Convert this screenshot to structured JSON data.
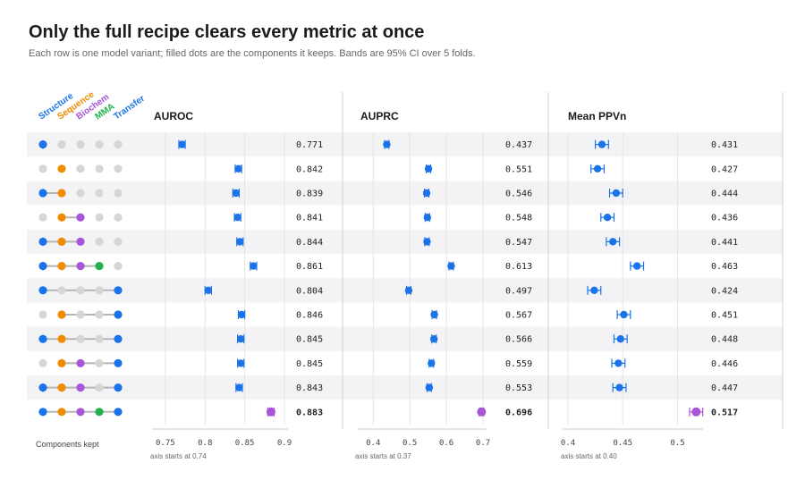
{
  "title": "Only the full recipe clears every metric at once",
  "subtitle": "Each row is one model variant; filled dots are the components it keeps. Bands are 95% CI over 5 folds.",
  "colors": {
    "point": "#1a73e8",
    "highlight": "#a855d8",
    "inactive_dot": "#d6d6d6",
    "row_band": "#f3f3f5",
    "grid": "#e4e4e4"
  },
  "footer_label": "Components kept",
  "chart_data": {
    "type": "scatter",
    "components": [
      {
        "name": "Structure",
        "color": "#1a73e8"
      },
      {
        "name": "Sequence",
        "color": "#f08c00"
      },
      {
        "name": "Biochem",
        "color": "#a855d8"
      },
      {
        "name": "MMA",
        "color": "#22b14c"
      },
      {
        "name": "Transfer",
        "color": "#1a73e8"
      }
    ],
    "rows": [
      {
        "keeps": [
          1,
          0,
          0,
          0,
          0
        ],
        "auroc": 0.771,
        "auprc": 0.437,
        "ppvn": 0.431
      },
      {
        "keeps": [
          0,
          1,
          0,
          0,
          0
        ],
        "auroc": 0.842,
        "auprc": 0.551,
        "ppvn": 0.427
      },
      {
        "keeps": [
          1,
          1,
          0,
          0,
          0
        ],
        "auroc": 0.839,
        "auprc": 0.546,
        "ppvn": 0.444
      },
      {
        "keeps": [
          0,
          1,
          1,
          0,
          0
        ],
        "auroc": 0.841,
        "auprc": 0.548,
        "ppvn": 0.436
      },
      {
        "keeps": [
          1,
          1,
          1,
          0,
          0
        ],
        "auroc": 0.844,
        "auprc": 0.547,
        "ppvn": 0.441
      },
      {
        "keeps": [
          1,
          1,
          1,
          1,
          0
        ],
        "auroc": 0.861,
        "auprc": 0.613,
        "ppvn": 0.463
      },
      {
        "keeps": [
          1,
          0,
          0,
          0,
          1
        ],
        "auroc": 0.804,
        "auprc": 0.497,
        "ppvn": 0.424
      },
      {
        "keeps": [
          0,
          1,
          0,
          0,
          1
        ],
        "auroc": 0.846,
        "auprc": 0.567,
        "ppvn": 0.451
      },
      {
        "keeps": [
          1,
          1,
          0,
          0,
          1
        ],
        "auroc": 0.845,
        "auprc": 0.566,
        "ppvn": 0.448
      },
      {
        "keeps": [
          0,
          1,
          1,
          0,
          1
        ],
        "auroc": 0.845,
        "auprc": 0.559,
        "ppvn": 0.446
      },
      {
        "keeps": [
          1,
          1,
          1,
          0,
          1
        ],
        "auroc": 0.843,
        "auprc": 0.553,
        "ppvn": 0.447
      },
      {
        "keeps": [
          1,
          1,
          1,
          1,
          1
        ],
        "auroc": 0.883,
        "auprc": 0.696,
        "ppvn": 0.517,
        "highlight": true
      }
    ],
    "metrics": [
      {
        "key": "auroc",
        "title": "AUROC",
        "xlim": [
          0.74,
          0.9
        ],
        "ticks": [
          "0.75",
          "0.8",
          "0.85",
          "0.9"
        ],
        "tick_values": [
          0.75,
          0.8,
          0.85,
          0.9
        ],
        "note": "axis starts at 0.74",
        "ci": 0.004
      },
      {
        "key": "auprc",
        "title": "AUPRC",
        "xlim": [
          0.37,
          0.7
        ],
        "ticks": [
          "0.4",
          "0.5",
          "0.6",
          "0.7"
        ],
        "tick_values": [
          0.4,
          0.5,
          0.6,
          0.7
        ],
        "note": "axis starts at 0.37",
        "ci": 0.006
      },
      {
        "key": "ppvn",
        "title": "Mean PPVn",
        "xlim": [
          0.4,
          0.52
        ],
        "ticks": [
          "0.4",
          "0.45",
          "0.5"
        ],
        "tick_values": [
          0.4,
          0.45,
          0.5
        ],
        "note": "axis starts at 0.40",
        "ci": 0.006
      }
    ]
  }
}
